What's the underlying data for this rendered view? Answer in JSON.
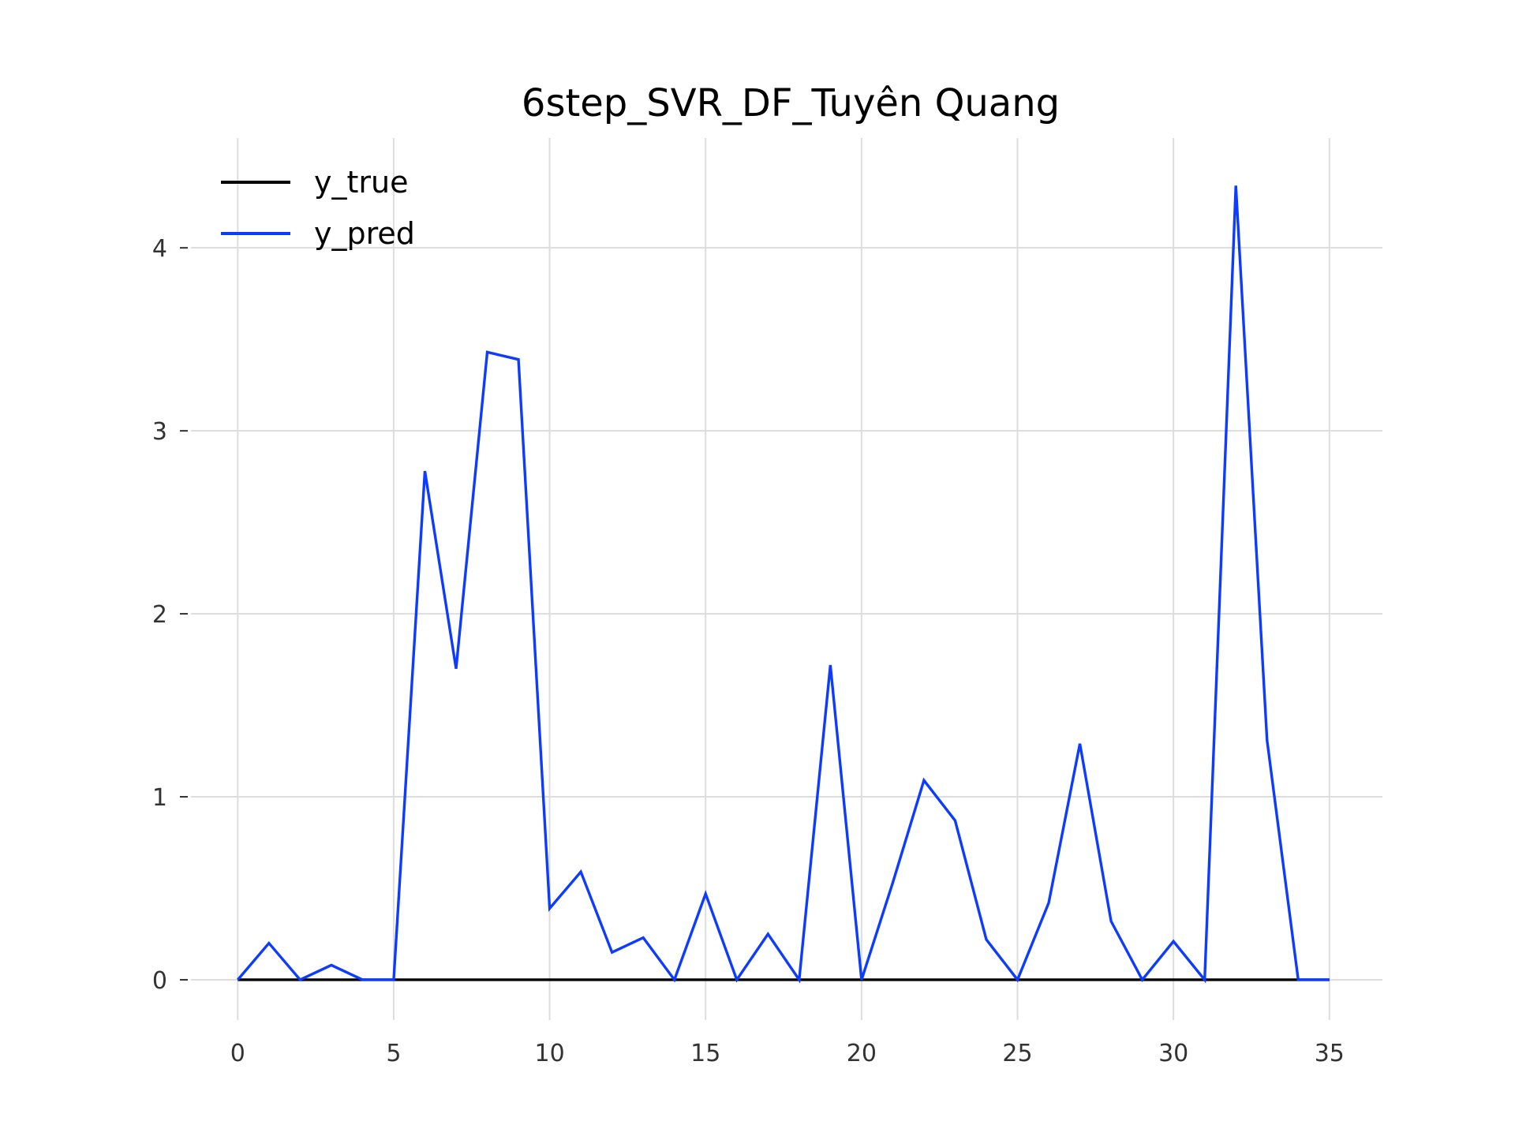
{
  "chart_data": {
    "type": "line",
    "title": "6step_SVR_DF_Tuyên Quang",
    "xlabel": "",
    "ylabel": "",
    "x": [
      0,
      1,
      2,
      3,
      4,
      5,
      6,
      7,
      8,
      9,
      10,
      11,
      12,
      13,
      14,
      15,
      16,
      17,
      18,
      19,
      20,
      21,
      22,
      23,
      24,
      25,
      26,
      27,
      28,
      29,
      30,
      31,
      32,
      33,
      34,
      35
    ],
    "xlim": [
      -1.5,
      36.7
    ],
    "ylim": [
      -0.22,
      4.6
    ],
    "xticks": [
      0,
      5,
      10,
      15,
      20,
      25,
      30,
      35
    ],
    "yticks": [
      0,
      1,
      2,
      3,
      4
    ],
    "grid": true,
    "legend_position": "upper-left",
    "series": [
      {
        "name": "y_true",
        "color": "#000000",
        "values": [
          0,
          0,
          0,
          0,
          0,
          0,
          0,
          0,
          0,
          0,
          0,
          0,
          0,
          0,
          0,
          0,
          0,
          0,
          0,
          0,
          0,
          0,
          0,
          0,
          0,
          0,
          0,
          0,
          0,
          0,
          0,
          0,
          0,
          0,
          0,
          0
        ]
      },
      {
        "name": "y_pred",
        "color": "#0d3bff",
        "values": [
          0,
          0.2,
          0,
          0.08,
          0,
          0,
          2.78,
          1.7,
          3.43,
          3.39,
          0.39,
          0.59,
          0.15,
          0.23,
          0,
          0.47,
          0,
          0.25,
          0,
          1.72,
          0,
          0.53,
          1.09,
          0.87,
          0.22,
          0,
          0.42,
          1.29,
          0.32,
          0,
          0.21,
          0,
          4.34,
          1.31,
          0,
          0
        ]
      }
    ]
  }
}
